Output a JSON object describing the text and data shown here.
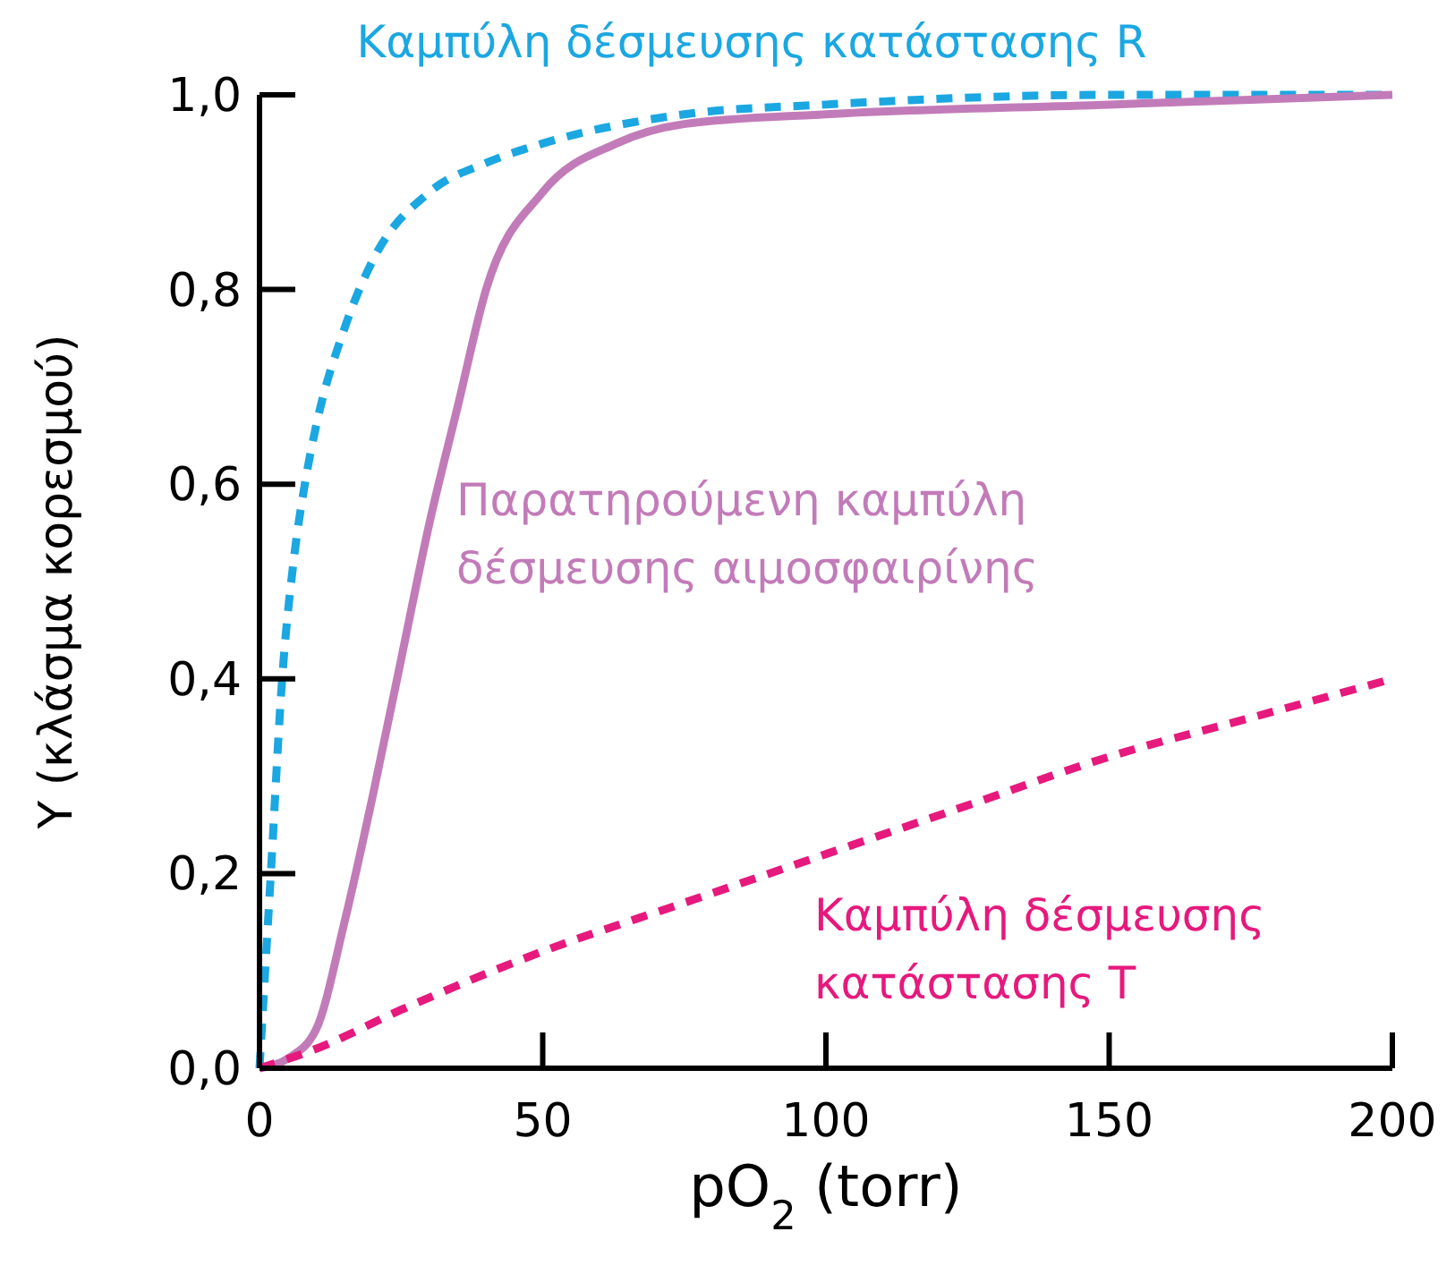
{
  "chart_data": {
    "type": "line",
    "xlabel": "pO$_{2}$ (torr)",
    "ylabel": "Y (κλάσμα κορεσμού)",
    "xlim": [
      0,
      200
    ],
    "xticks": [
      0,
      50,
      100,
      150,
      200
    ],
    "ylim": [
      0,
      1
    ],
    "yticks": [
      {
        "value": 0,
        "label": "0,0"
      },
      {
        "value": 0.2,
        "label": "0,2"
      },
      {
        "value": 0.4,
        "label": "0,4"
      },
      {
        "value": 0.6,
        "label": "0,6"
      },
      {
        "value": 0.8,
        "label": "0,8"
      },
      {
        "value": 1,
        "label": "1,0"
      }
    ],
    "grid": false,
    "marker": "none",
    "series": [
      {
        "name": "Καμπύλη δέσμευσης κατάστασης R",
        "color": "#1ba7e1",
        "line_style": "dashed",
        "x": [
          0,
          2,
          4,
          6,
          8,
          10,
          15,
          20,
          30,
          40,
          50,
          75,
          100,
          150,
          200
        ],
        "values": [
          0,
          0.2,
          0.4,
          0.52,
          0.6,
          0.66,
          0.76,
          0.83,
          0.9,
          0.93,
          0.95,
          0.98,
          0.99,
          1,
          1
        ]
      },
      {
        "name": "Παρατηρούμενη καμπύλη δέσμευσης αιμοσφαιρίνης",
        "color": "#c27bb9",
        "line_style": "solid",
        "x": [
          0,
          5,
          10,
          15,
          20,
          25,
          30,
          35,
          40,
          50,
          63,
          75,
          100,
          150,
          200
        ],
        "values": [
          0,
          0.01,
          0.04,
          0.15,
          0.28,
          0.42,
          0.56,
          0.68,
          0.8,
          0.9,
          0.95,
          0.97,
          0.98,
          0.99,
          1
        ]
      },
      {
        "name": "Καμπύλη δέσμευσης κατάστασης T",
        "color": "#e6197d",
        "line_style": "dashed",
        "x": [
          0,
          10,
          25,
          50,
          75,
          100,
          125,
          150,
          175,
          200
        ],
        "values": [
          0,
          0.02,
          0.06,
          0.12,
          0.17,
          0.22,
          0.27,
          0.32,
          0.36,
          0.4
        ]
      }
    ]
  }
}
